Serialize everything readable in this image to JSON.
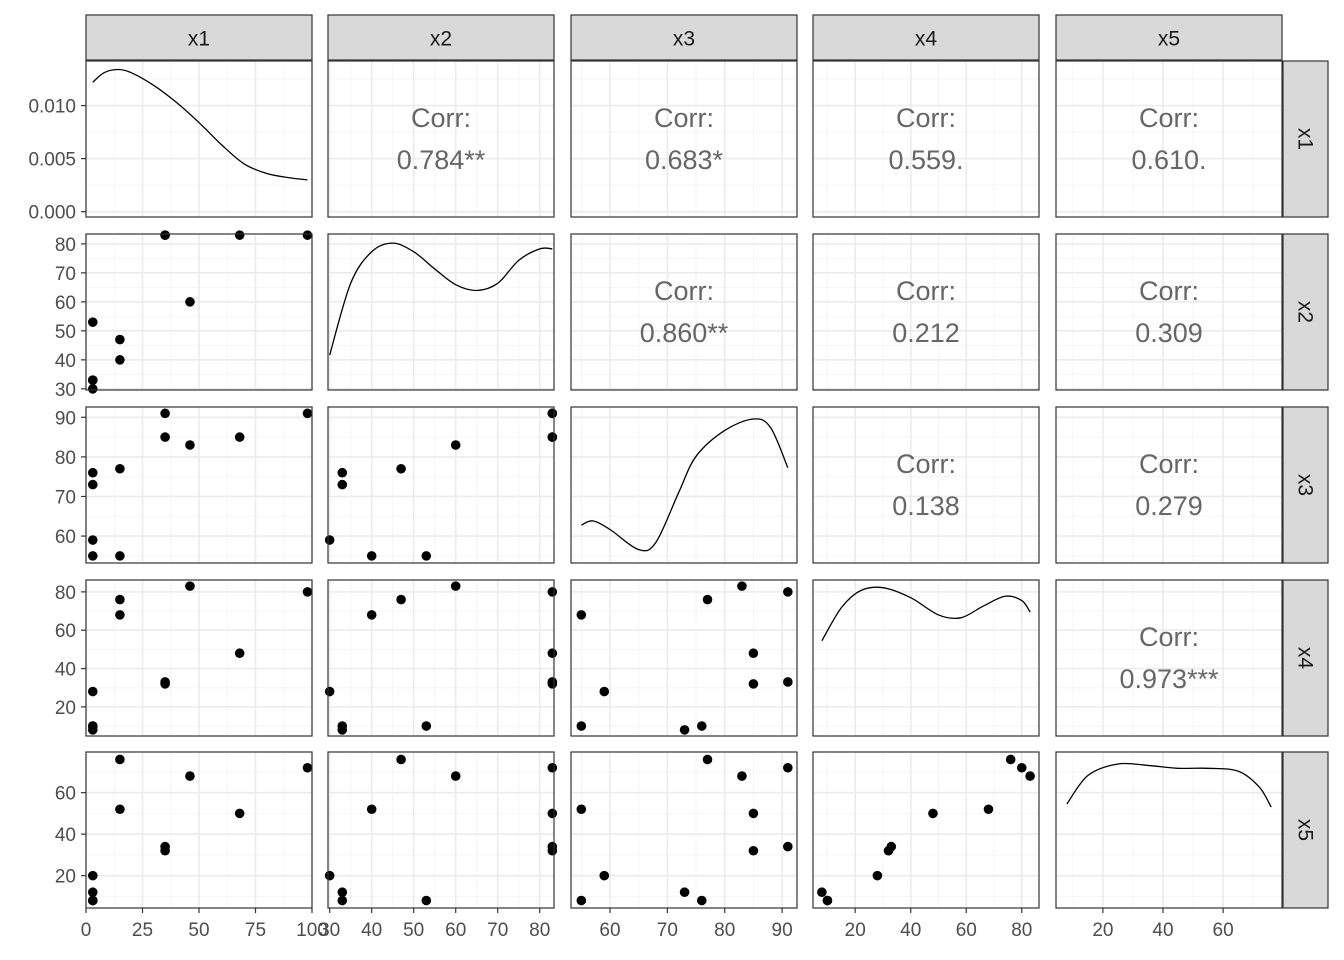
{
  "chart_data": {
    "type": "scatter-matrix",
    "variables": [
      "x1",
      "x2",
      "x3",
      "x4",
      "x5"
    ],
    "corr_label": "Corr:",
    "correlations": [
      {
        "row": "x1",
        "col": "x2",
        "label": "0.784**"
      },
      {
        "row": "x1",
        "col": "x3",
        "label": "0.683*"
      },
      {
        "row": "x1",
        "col": "x4",
        "label": "0.559."
      },
      {
        "row": "x1",
        "col": "x5",
        "label": "0.610."
      },
      {
        "row": "x2",
        "col": "x3",
        "label": "0.860**"
      },
      {
        "row": "x2",
        "col": "x4",
        "label": "0.212"
      },
      {
        "row": "x2",
        "col": "x5",
        "label": "0.309"
      },
      {
        "row": "x3",
        "col": "x4",
        "label": "0.138"
      },
      {
        "row": "x3",
        "col": "x5",
        "label": "0.279"
      },
      {
        "row": "x4",
        "col": "x5",
        "label": "0.973***"
      }
    ],
    "observations": {
      "x1": [
        3,
        3,
        3,
        3,
        15,
        15,
        35,
        35,
        46,
        68,
        98
      ],
      "x2": [
        53,
        30,
        33,
        33,
        47,
        40,
        83,
        83,
        60,
        83,
        83
      ],
      "x3": [
        55,
        59,
        73,
        76,
        77,
        55,
        85,
        91,
        83,
        85,
        91
      ],
      "x4": [
        10,
        28,
        8,
        10,
        76,
        68,
        32,
        33,
        83,
        48,
        80
      ],
      "x5": [
        8,
        20,
        12,
        8,
        76,
        52,
        32,
        34,
        68,
        50,
        72
      ]
    },
    "density_curves": {
      "x1": [
        [
          3,
          0.0122
        ],
        [
          8,
          0.0131
        ],
        [
          14,
          0.0134
        ],
        [
          20,
          0.0131
        ],
        [
          30,
          0.0119
        ],
        [
          40,
          0.0103
        ],
        [
          50,
          0.0084
        ],
        [
          60,
          0.0063
        ],
        [
          70,
          0.0045
        ],
        [
          80,
          0.0036
        ],
        [
          90,
          0.0032
        ],
        [
          98,
          0.003
        ]
      ],
      "x2": [
        [
          30,
          0.2
        ],
        [
          35,
          0.7
        ],
        [
          40,
          0.92
        ],
        [
          45,
          0.98
        ],
        [
          50,
          0.92
        ],
        [
          55,
          0.8
        ],
        [
          60,
          0.69
        ],
        [
          65,
          0.65
        ],
        [
          70,
          0.7
        ],
        [
          75,
          0.86
        ],
        [
          80,
          0.94
        ],
        [
          83,
          0.94
        ]
      ],
      "x3": [
        [
          55,
          0.22
        ],
        [
          57,
          0.25
        ],
        [
          60,
          0.19
        ],
        [
          65,
          0.05
        ],
        [
          68,
          0.1
        ],
        [
          72,
          0.45
        ],
        [
          75,
          0.7
        ],
        [
          80,
          0.88
        ],
        [
          85,
          0.96
        ],
        [
          88,
          0.9
        ],
        [
          91,
          0.62
        ]
      ],
      "x4": [
        [
          8,
          0.62
        ],
        [
          15,
          0.85
        ],
        [
          22,
          0.97
        ],
        [
          30,
          0.99
        ],
        [
          40,
          0.92
        ],
        [
          50,
          0.8
        ],
        [
          58,
          0.78
        ],
        [
          66,
          0.86
        ],
        [
          74,
          0.93
        ],
        [
          80,
          0.9
        ],
        [
          83,
          0.82
        ]
      ],
      "x5": [
        [
          8,
          0.68
        ],
        [
          15,
          0.88
        ],
        [
          25,
          0.96
        ],
        [
          35,
          0.95
        ],
        [
          45,
          0.93
        ],
        [
          55,
          0.93
        ],
        [
          65,
          0.91
        ],
        [
          72,
          0.8
        ],
        [
          76,
          0.66
        ]
      ]
    },
    "axes": {
      "x1": {
        "lim": [
          0,
          100
        ],
        "ticks": [
          0,
          25,
          50,
          75,
          100
        ],
        "labels": [
          "0",
          "25",
          "50",
          "75",
          "100"
        ]
      },
      "x2": {
        "lim": [
          29.6,
          83.4
        ],
        "ticks": [
          30,
          40,
          50,
          60,
          70,
          80
        ],
        "labels": [
          "30",
          "40",
          "50",
          "60",
          "70",
          "80"
        ]
      },
      "x3": {
        "lim": [
          53.2,
          92.6
        ],
        "ticks": [
          60,
          70,
          80,
          90
        ],
        "labels": [
          "60",
          "70",
          "80",
          "90"
        ]
      },
      "x4": {
        "lim": [
          4.8,
          86.2
        ],
        "ticks": [
          20,
          40,
          60,
          80
        ],
        "labels": [
          "20",
          "40",
          "60",
          "80"
        ]
      },
      "x5": {
        "lim": [
          4.4,
          79.6
        ],
        "ticks": [
          20,
          40,
          60
        ],
        "labels": [
          "20",
          "40",
          "60"
        ]
      }
    },
    "density_axis": {
      "lim": [
        -0.0005,
        0.0142
      ],
      "ticks": [
        0,
        0.005,
        0.01
      ],
      "labels": [
        "0.000",
        "0.005",
        "0.010"
      ]
    },
    "grid": true,
    "theme": "bw",
    "colors": {
      "strip_bg": "#d9d9d9",
      "border": "#333333",
      "grid_major": "#ebebeb",
      "grid_minor": "#f5f5f5",
      "point": "#000000",
      "corr_text": "#666666",
      "axis_text": "#4d4d4d"
    }
  }
}
